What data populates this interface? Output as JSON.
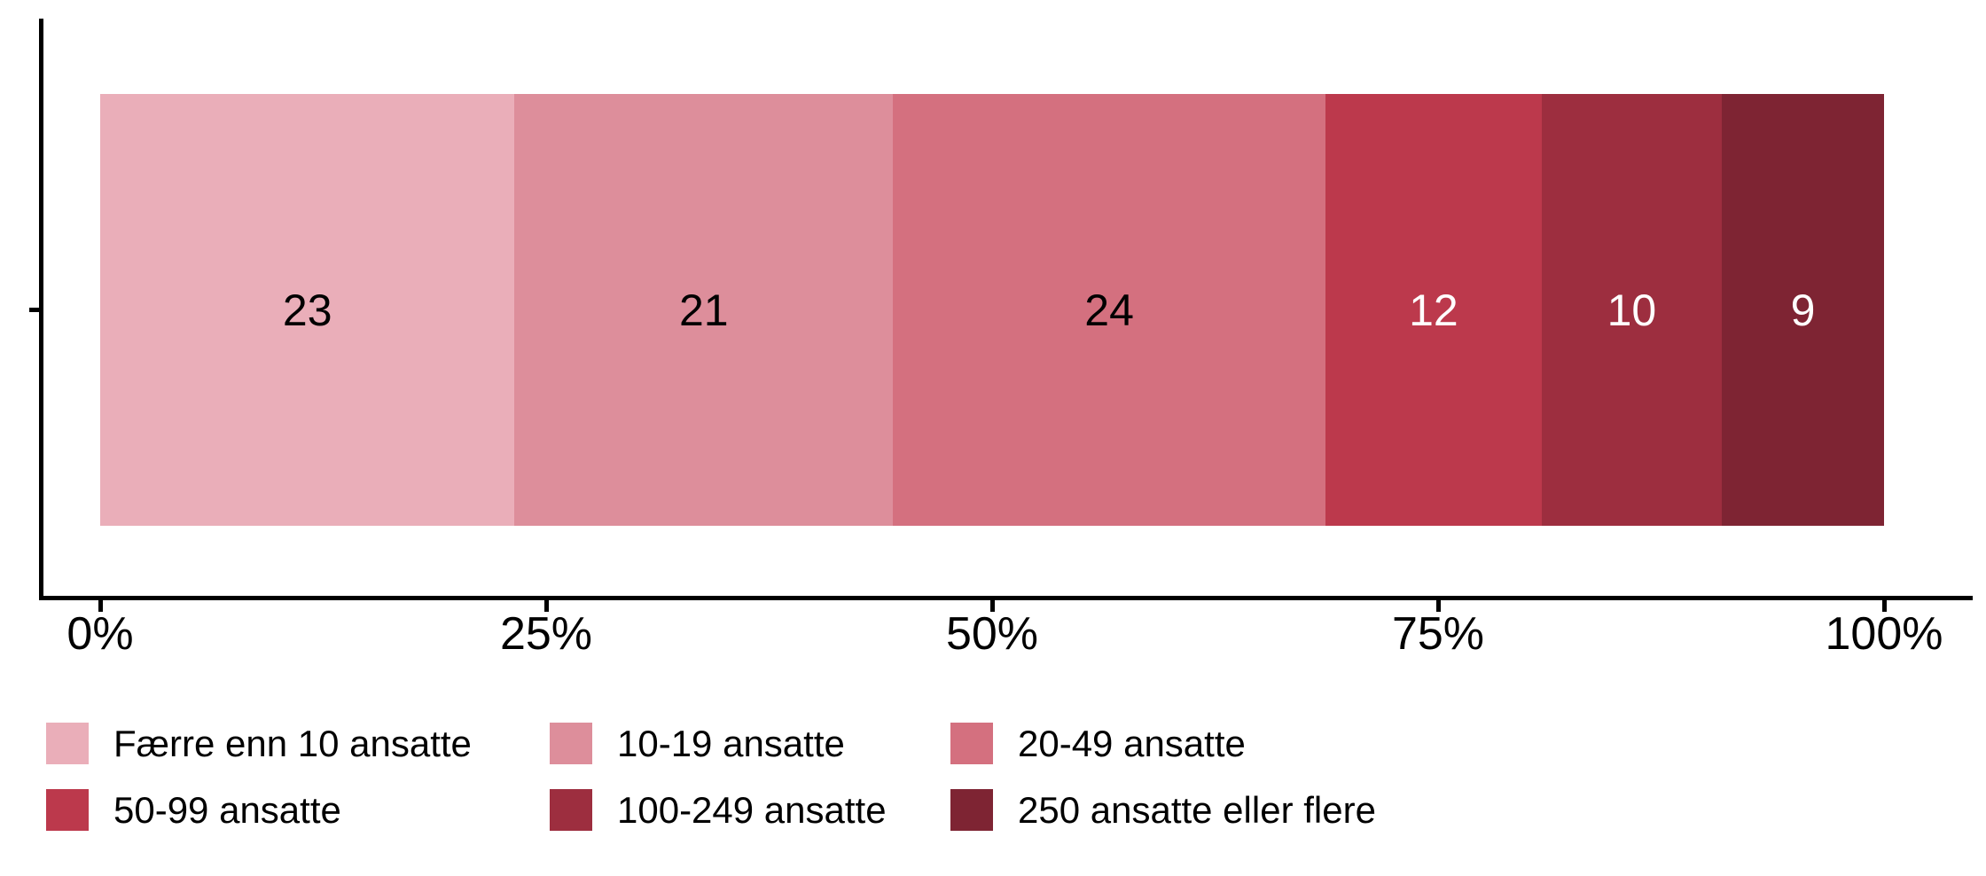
{
  "figure": {
    "background": "#ffffff",
    "axis_color": "#000000"
  },
  "chart_data": {
    "type": "bar",
    "variant": "horizontal-stacked-percent",
    "title": "",
    "xlabel": "",
    "ylabel": "",
    "grid": false,
    "legend_position": "bottom",
    "xlim": [
      0,
      100
    ],
    "x_ticks": {
      "values": [
        0,
        25,
        50,
        75,
        100
      ],
      "labels": [
        "0%",
        "25%",
        "50%",
        "75%",
        "100%"
      ]
    },
    "total": 99,
    "categories": [
      "Færre enn 10 ansatte",
      "10-19 ansatte",
      "20-49 ansatte",
      "50-99 ansatte",
      "100-249 ansatte",
      "250 ansatte eller flere"
    ],
    "values": [
      23,
      21,
      24,
      12,
      10,
      9
    ],
    "colors": [
      "#EAAEB9",
      "#DD8E9B",
      "#D4707F",
      "#BC394C",
      "#9D2E3F",
      "#7E2433"
    ],
    "value_label_colors": [
      "#000000",
      "#000000",
      "#000000",
      "#FFFFFF",
      "#FFFFFF",
      "#FFFFFF"
    ]
  }
}
